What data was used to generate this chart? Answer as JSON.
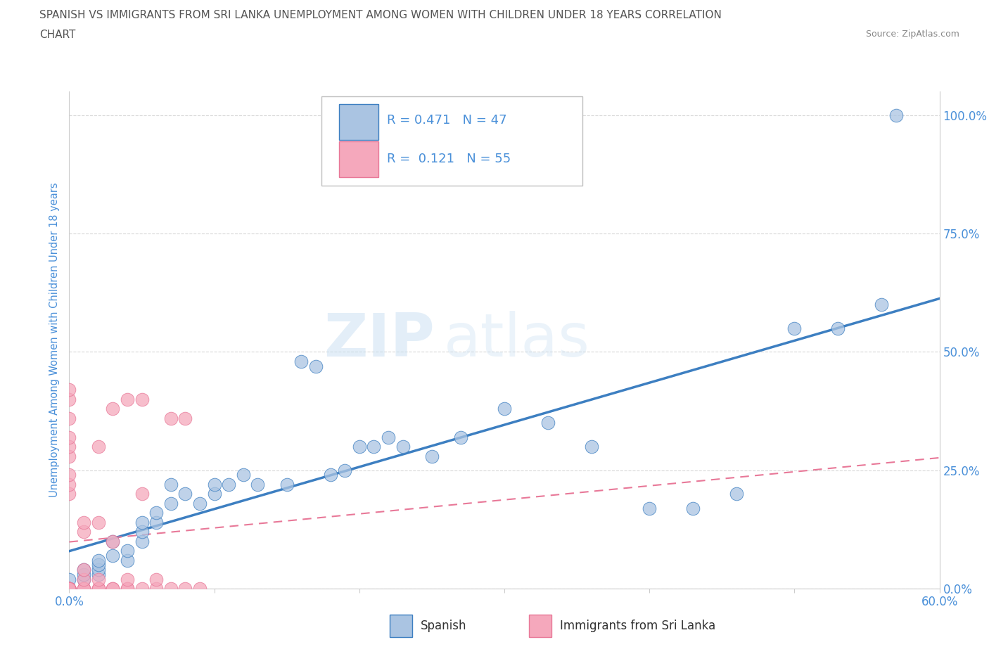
{
  "title_line1": "SPANISH VS IMMIGRANTS FROM SRI LANKA UNEMPLOYMENT AMONG WOMEN WITH CHILDREN UNDER 18 YEARS CORRELATION",
  "title_line2": "CHART",
  "source": "Source: ZipAtlas.com",
  "ylabel": "Unemployment Among Women with Children Under 18 years",
  "xlim": [
    0.0,
    0.6
  ],
  "ylim": [
    0.0,
    1.05
  ],
  "xtick_positions": [
    0.0,
    0.1,
    0.2,
    0.3,
    0.4,
    0.5,
    0.6
  ],
  "xticklabels": [
    "0.0%",
    "",
    "",
    "",
    "",
    "",
    "60.0%"
  ],
  "ytick_positions": [
    0.0,
    0.25,
    0.5,
    0.75,
    1.0
  ],
  "ytick_labels": [
    "0.0%",
    "25.0%",
    "50.0%",
    "75.0%",
    "100.0%"
  ],
  "r_spanish": 0.471,
  "n_spanish": 47,
  "r_srilanka": 0.121,
  "n_srilanka": 55,
  "spanish_color": "#aac4e2",
  "srilanka_color": "#f5a8bc",
  "trendline_spanish_color": "#3d7fc1",
  "trendline_srilanka_color": "#e87898",
  "watermark_zip": "ZIP",
  "watermark_atlas": "atlas",
  "background_color": "#ffffff",
  "grid_color": "#d8d8d8",
  "title_color": "#555555",
  "axis_label_color": "#4a90d9",
  "legend_text_color": "#4a90d9",
  "spanish_x": [
    0.0,
    0.01,
    0.01,
    0.01,
    0.02,
    0.02,
    0.02,
    0.02,
    0.03,
    0.03,
    0.04,
    0.04,
    0.05,
    0.05,
    0.05,
    0.06,
    0.06,
    0.07,
    0.07,
    0.08,
    0.09,
    0.1,
    0.1,
    0.11,
    0.12,
    0.13,
    0.15,
    0.16,
    0.17,
    0.18,
    0.19,
    0.2,
    0.21,
    0.22,
    0.23,
    0.25,
    0.27,
    0.3,
    0.33,
    0.36,
    0.4,
    0.43,
    0.46,
    0.5,
    0.53,
    0.56,
    0.57
  ],
  "spanish_y": [
    0.02,
    0.02,
    0.03,
    0.04,
    0.03,
    0.04,
    0.05,
    0.06,
    0.07,
    0.1,
    0.06,
    0.08,
    0.1,
    0.12,
    0.14,
    0.14,
    0.16,
    0.18,
    0.22,
    0.2,
    0.18,
    0.2,
    0.22,
    0.22,
    0.24,
    0.22,
    0.22,
    0.48,
    0.47,
    0.24,
    0.25,
    0.3,
    0.3,
    0.32,
    0.3,
    0.28,
    0.32,
    0.38,
    0.35,
    0.3,
    0.17,
    0.17,
    0.2,
    0.55,
    0.55,
    0.6,
    1.0
  ],
  "srilanka_x": [
    0.0,
    0.0,
    0.0,
    0.0,
    0.0,
    0.0,
    0.0,
    0.0,
    0.0,
    0.0,
    0.0,
    0.0,
    0.0,
    0.0,
    0.0,
    0.0,
    0.0,
    0.0,
    0.0,
    0.0,
    0.0,
    0.0,
    0.0,
    0.0,
    0.01,
    0.01,
    0.01,
    0.01,
    0.01,
    0.01,
    0.01,
    0.02,
    0.02,
    0.02,
    0.02,
    0.02,
    0.02,
    0.03,
    0.03,
    0.03,
    0.03,
    0.04,
    0.04,
    0.04,
    0.04,
    0.05,
    0.05,
    0.05,
    0.06,
    0.06,
    0.07,
    0.07,
    0.08,
    0.08,
    0.09
  ],
  "srilanka_y": [
    0.0,
    0.0,
    0.0,
    0.0,
    0.0,
    0.0,
    0.0,
    0.0,
    0.0,
    0.0,
    0.0,
    0.0,
    0.0,
    0.0,
    0.0,
    0.2,
    0.22,
    0.24,
    0.28,
    0.3,
    0.32,
    0.36,
    0.4,
    0.42,
    0.0,
    0.0,
    0.0,
    0.02,
    0.04,
    0.12,
    0.14,
    0.0,
    0.0,
    0.0,
    0.02,
    0.14,
    0.3,
    0.0,
    0.0,
    0.1,
    0.38,
    0.0,
    0.0,
    0.02,
    0.4,
    0.0,
    0.2,
    0.4,
    0.0,
    0.02,
    0.0,
    0.36,
    0.0,
    0.36,
    0.0
  ]
}
